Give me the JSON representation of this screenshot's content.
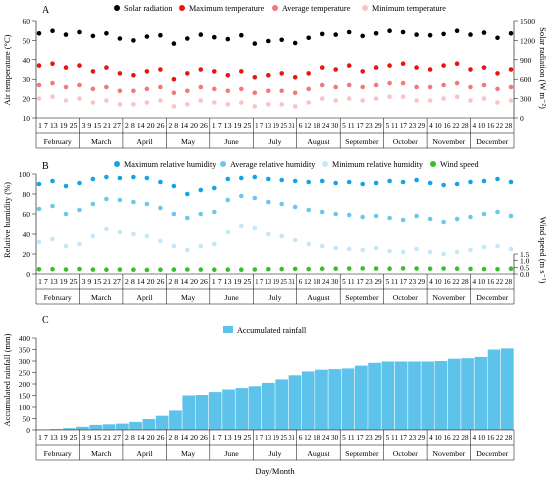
{
  "months": [
    "February",
    "March",
    "April",
    "May",
    "June",
    "July",
    "August",
    "September",
    "October",
    "November",
    "December"
  ],
  "day_ticks": [
    [
      "1",
      "7",
      "13",
      "19",
      "25"
    ],
    [
      "3",
      "9",
      "15",
      "21",
      "27"
    ],
    [
      "2",
      "8",
      "14",
      "20",
      "26"
    ],
    [
      "2",
      "8",
      "14",
      "20",
      "26"
    ],
    [
      "1",
      "7",
      "13",
      "19",
      "25"
    ],
    [
      "1",
      "7",
      "13",
      "19",
      "25",
      "31"
    ],
    [
      "6",
      "12",
      "18",
      "24",
      "30"
    ],
    [
      "5",
      "11",
      "17",
      "23",
      "29"
    ],
    [
      "5",
      "11",
      "17",
      "23",
      "29"
    ],
    [
      "4",
      "10",
      "16",
      "22",
      "28"
    ],
    [
      "4",
      "10",
      "16",
      "22",
      "28"
    ]
  ],
  "colors": {
    "solar": "#000000",
    "max_temp": "#e8140e",
    "avg_temp": "#f07a7a",
    "min_temp": "#f9c4c4",
    "max_rh": "#13a4e6",
    "avg_rh": "#6cc6ee",
    "min_rh": "#c3e8f7",
    "wind": "#3cba30",
    "rain": "#5ec3ea"
  },
  "chart_data": [
    {
      "panel": "A",
      "type": "scatter",
      "x_unit": "day",
      "ylabel_left": "Air temperature (°C)",
      "ylabel_right": "Solar radiation (W m⁻²)",
      "y_left_ticks": [
        "10",
        "20",
        "30",
        "40",
        "50",
        "60"
      ],
      "y_right_ticks": [
        "0",
        "300",
        "600",
        "900",
        "1200",
        "1500"
      ],
      "ylim_left": [
        10,
        60
      ],
      "ylim_right": [
        0,
        1500
      ],
      "series": [
        {
          "name": "Solar radiation",
          "axis": "right",
          "values": [
            1310,
            1350,
            1290,
            1330,
            1270,
            1310,
            1230,
            1200,
            1260,
            1280,
            1150,
            1230,
            1290,
            1250,
            1220,
            1280,
            1150,
            1190,
            1210,
            1160,
            1240,
            1300,
            1290,
            1330,
            1270,
            1310,
            1350,
            1330,
            1290,
            1280,
            1300,
            1350,
            1290,
            1320,
            1240,
            1310
          ]
        },
        {
          "name": "Maximum temperature",
          "axis": "left",
          "values": [
            37,
            38,
            36,
            37,
            34,
            36,
            33,
            32,
            34,
            35,
            30,
            33,
            35,
            34,
            32,
            34,
            31,
            32,
            33,
            31,
            33,
            36,
            35,
            37,
            34,
            36,
            37,
            38,
            36,
            35,
            37,
            38,
            35,
            36,
            33,
            35
          ]
        },
        {
          "name": "Average temperature",
          "axis": "left",
          "values": [
            27,
            28,
            26,
            27,
            25,
            26,
            24,
            24,
            25,
            26,
            23,
            24,
            26,
            25,
            24,
            25,
            23,
            24,
            24,
            23,
            25,
            27,
            26,
            27,
            26,
            27,
            28,
            28,
            26,
            26,
            27,
            28,
            26,
            27,
            25,
            26
          ]
        },
        {
          "name": "Minimum temperature",
          "axis": "left",
          "values": [
            20,
            21,
            19,
            20,
            18,
            19,
            17,
            17,
            18,
            19,
            16,
            17,
            19,
            18,
            17,
            18,
            16,
            17,
            17,
            16,
            18,
            20,
            19,
            20,
            19,
            20,
            21,
            21,
            19,
            19,
            20,
            21,
            19,
            20,
            18,
            19
          ]
        }
      ]
    },
    {
      "panel": "B",
      "type": "scatter",
      "x_unit": "day",
      "ylabel_left": "Relative humidity (%)",
      "ylabel_right": "Wind speed (m s⁻¹)",
      "y_left_ticks": [
        "0",
        "20",
        "40",
        "60",
        "80",
        "100"
      ],
      "y_right_ticks": [
        "0.0",
        "0.5",
        "1.0",
        "1.5"
      ],
      "ylim_left": [
        0,
        100
      ],
      "ylim_right": [
        0,
        1.5
      ],
      "series": [
        {
          "name": "Maximum relative humidity",
          "axis": "left",
          "values": [
            90,
            93,
            88,
            91,
            95,
            97,
            96,
            97,
            96,
            92,
            88,
            80,
            84,
            86,
            95,
            96,
            97,
            95,
            94,
            93,
            92,
            93,
            91,
            92,
            90,
            91,
            93,
            92,
            94,
            91,
            89,
            90,
            92,
            93,
            95,
            92
          ]
        },
        {
          "name": "Average relative humidity",
          "axis": "left",
          "values": [
            65,
            68,
            60,
            64,
            70,
            75,
            74,
            72,
            70,
            66,
            60,
            56,
            60,
            62,
            74,
            78,
            76,
            72,
            70,
            67,
            64,
            62,
            60,
            59,
            57,
            58,
            56,
            54,
            58,
            55,
            52,
            55,
            57,
            60,
            62,
            58
          ]
        },
        {
          "name": "Minimum relative humidity",
          "axis": "left",
          "values": [
            32,
            35,
            28,
            30,
            38,
            45,
            42,
            40,
            38,
            33,
            28,
            24,
            28,
            30,
            42,
            48,
            46,
            40,
            38,
            34,
            30,
            28,
            26,
            25,
            24,
            26,
            23,
            22,
            25,
            22,
            20,
            22,
            24,
            27,
            28,
            25
          ]
        },
        {
          "name": "Wind speed",
          "axis": "right",
          "values": [
            0.35,
            0.36,
            0.34,
            0.37,
            0.33,
            0.32,
            0.33,
            0.32,
            0.31,
            0.32,
            0.33,
            0.34,
            0.33,
            0.32,
            0.33,
            0.32,
            0.34,
            0.36,
            0.37,
            0.38,
            0.37,
            0.39,
            0.4,
            0.41,
            0.42,
            0.41,
            0.4,
            0.42,
            0.41,
            0.4,
            0.41,
            0.4,
            0.38,
            0.37,
            0.36,
            0.4
          ]
        }
      ]
    },
    {
      "panel": "C",
      "type": "bar",
      "x_unit": "day",
      "xlabel": "Day/Month",
      "ylabel": "Accumulated rainfall (mm)",
      "y_ticks": [
        "0",
        "50",
        "100",
        "150",
        "200",
        "250",
        "300",
        "350",
        "400"
      ],
      "ylim": [
        0,
        400
      ],
      "series": [
        {
          "name": "Accumulated rainfall",
          "values": [
            2,
            4,
            8,
            14,
            22,
            25,
            28,
            35,
            48,
            62,
            85,
            150,
            152,
            165,
            176,
            182,
            190,
            205,
            220,
            238,
            255,
            262,
            265,
            268,
            280,
            292,
            298,
            298,
            298,
            298,
            300,
            310,
            312,
            318,
            350,
            355
          ]
        }
      ]
    }
  ]
}
